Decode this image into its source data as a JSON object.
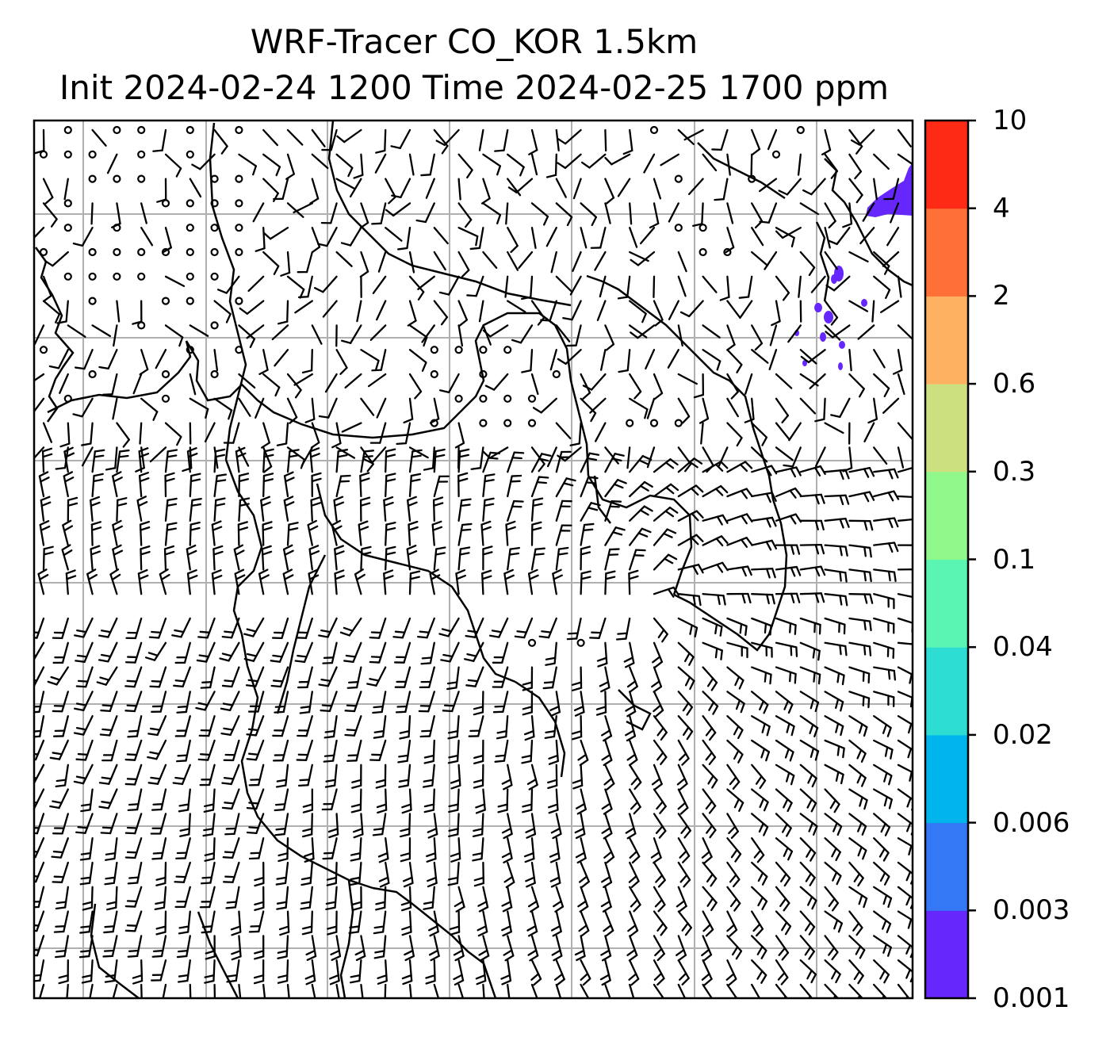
{
  "title": {
    "line1": "WRF-Tracer CO_KOR 1.5km",
    "line2": "Init 2024-02-24 1200 Time 2024-02-25 1700 ppm"
  },
  "colorbar": {
    "levels": [
      "0.001",
      "0.003",
      "0.006",
      "0.02",
      "0.04",
      "0.1",
      "0.3",
      "0.6",
      "2",
      "4",
      "10"
    ],
    "colors": [
      "#6527fb",
      "#3478f5",
      "#00b5eb",
      "#2ddcd2",
      "#5bf5b3",
      "#90f78a",
      "#cde080",
      "#ffb162",
      "#ff7038",
      "#ff2a15"
    ]
  },
  "map": {
    "background": "#ffffff",
    "gridline_color": "#b0b0b0",
    "barb_color": "#000000",
    "tracer_plume_color": "#6527fb"
  }
}
